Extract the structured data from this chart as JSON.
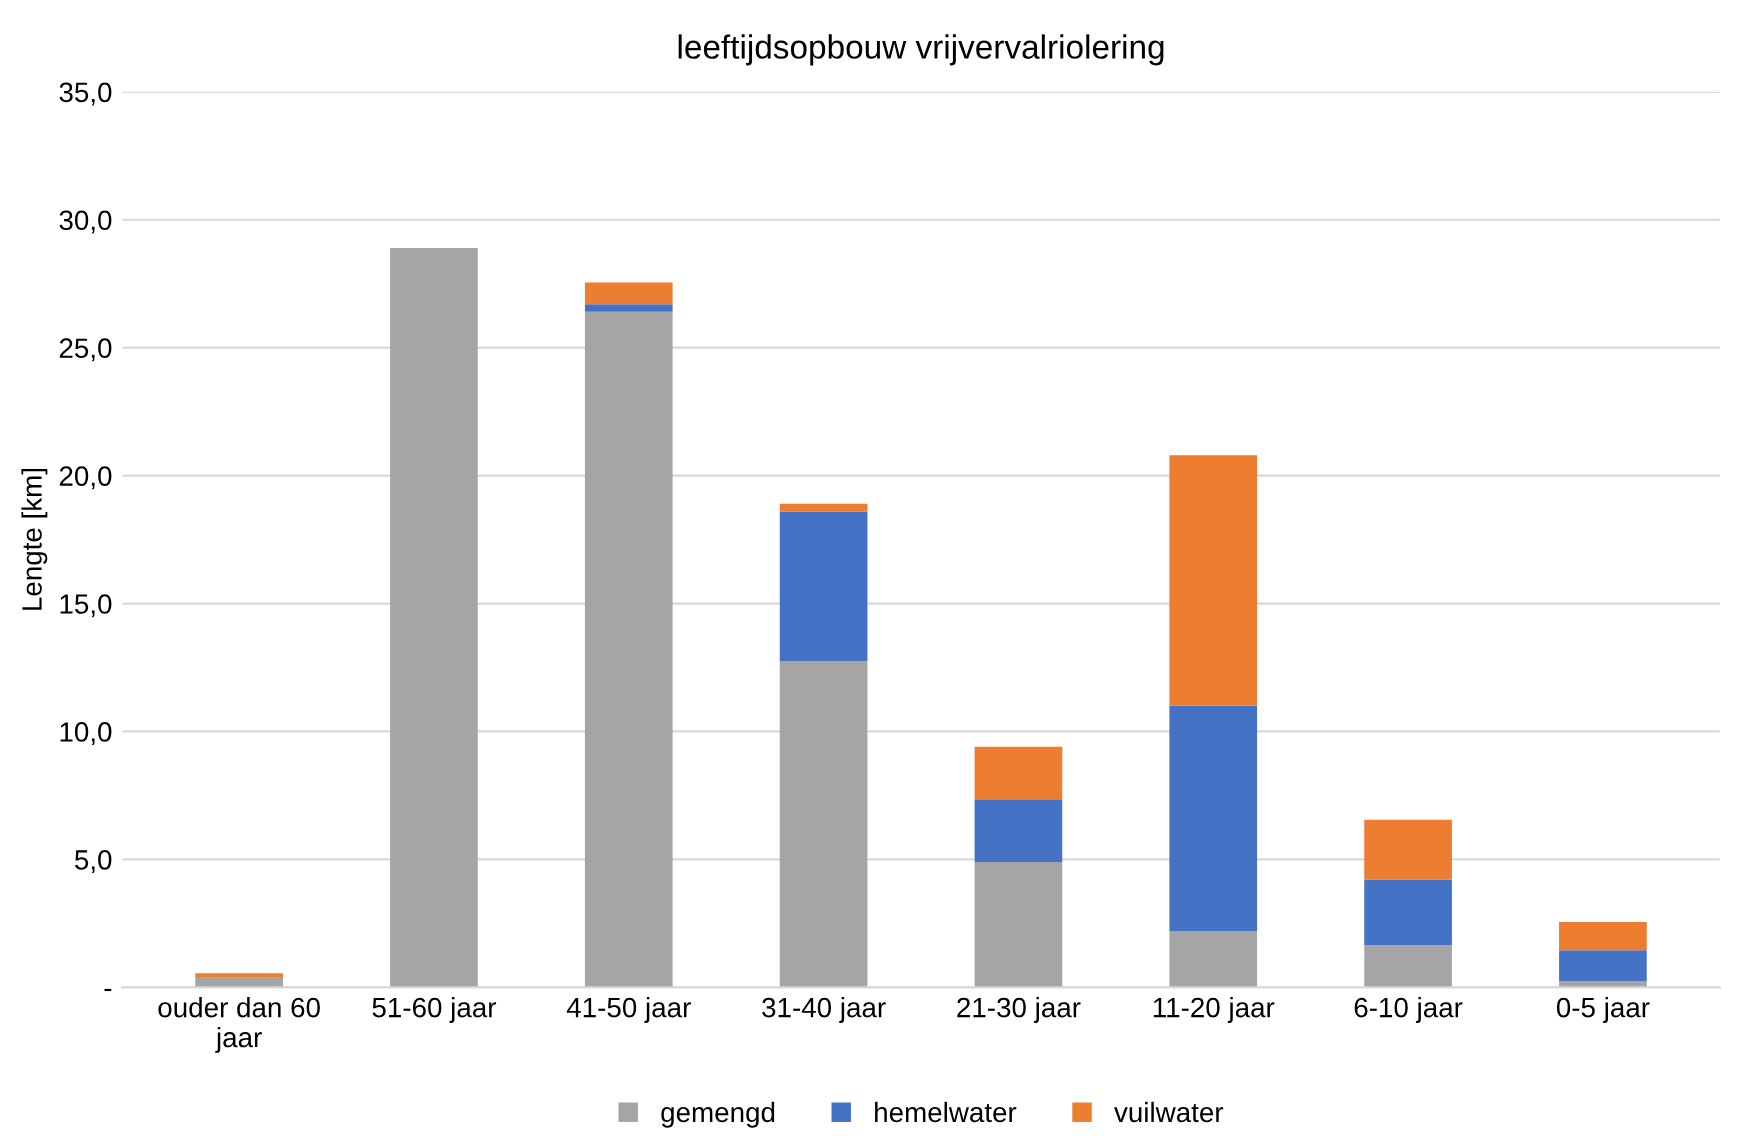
{
  "chart_data": {
    "type": "bar",
    "title": "leeftijdsopbouw vrijvervalriolering",
    "ylabel": "Lengte [km]",
    "categories": [
      "ouder dan 60\njaar",
      "51-60 jaar",
      "41-50 jaar",
      "31-40 jaar",
      "21-30 jaar",
      "11-20 jaar",
      "6-10 jaar",
      "0-5 jaar"
    ],
    "stacked": true,
    "series": [
      {
        "name": "gemengd",
        "color": "#a5a5a5",
        "values": [
          0.4,
          28.9,
          26.4,
          12.75,
          4.9,
          2.2,
          1.65,
          0.25
        ]
      },
      {
        "name": "hemelwater",
        "color": "#4472c4",
        "values": [
          0,
          0,
          0.3,
          5.85,
          2.45,
          8.8,
          2.55,
          1.2
        ]
      },
      {
        "name": "vuilwater",
        "color": "#ed7d31",
        "values": [
          0.15,
          0,
          0.85,
          0.3,
          2.05,
          9.8,
          2.35,
          1.1
        ]
      }
    ],
    "ylim": [
      0,
      35
    ],
    "yticks": [
      {
        "value": 0,
        "label": "-"
      },
      {
        "value": 5,
        "label": "5,0"
      },
      {
        "value": 10,
        "label": "10,0"
      },
      {
        "value": 15,
        "label": "15,0"
      },
      {
        "value": 20,
        "label": "20,0"
      },
      {
        "value": 25,
        "label": "25,0"
      },
      {
        "value": 30,
        "label": "30,0"
      },
      {
        "value": 35,
        "label": "35,0"
      }
    ],
    "grid": "y",
    "legend": "bottom"
  }
}
